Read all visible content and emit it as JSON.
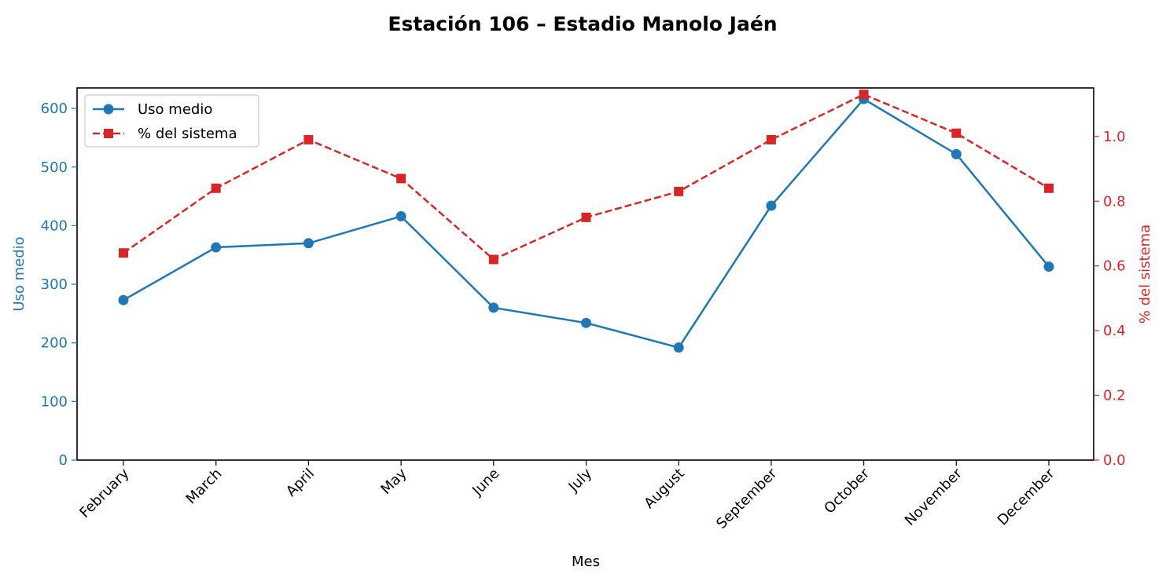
{
  "chart_data": {
    "type": "line",
    "title": "Estación 106 – Estadio Manolo Jaén",
    "xlabel": "Mes",
    "ylabel_left": "Uso medio",
    "ylabel_right": "% del sistema",
    "categories": [
      "February",
      "March",
      "April",
      "May",
      "June",
      "July",
      "August",
      "September",
      "October",
      "November",
      "December"
    ],
    "series": [
      {
        "name": "Uso medio",
        "axis": "left",
        "marker": "circle",
        "linestyle": "solid",
        "color": "#1f77b4",
        "values": [
          273,
          363,
          370,
          416,
          260,
          234,
          192,
          434,
          616,
          522,
          330
        ]
      },
      {
        "name": "% del sistema",
        "axis": "right",
        "marker": "square",
        "linestyle": "dashed",
        "color": "#d62728",
        "values": [
          0.64,
          0.84,
          0.99,
          0.87,
          0.62,
          0.75,
          0.83,
          0.99,
          1.13,
          1.01,
          0.84
        ]
      }
    ],
    "ylim_left": [
      0,
      635
    ],
    "yticks_left": [
      0,
      100,
      200,
      300,
      400,
      500,
      600
    ],
    "ylim_right": [
      0,
      1.15
    ],
    "yticks_right": [
      "0.0",
      "0.2",
      "0.4",
      "0.6",
      "0.8",
      "1.0"
    ],
    "grid": false,
    "legend": "upper-left"
  }
}
